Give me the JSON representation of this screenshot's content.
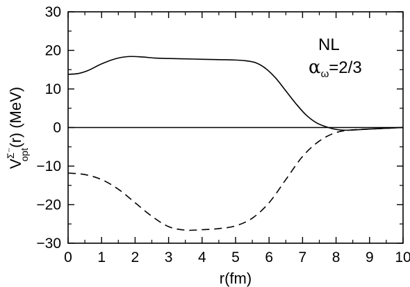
{
  "chart_data": {
    "type": "line",
    "xlabel": "r(fm)",
    "ylabel_main": "V",
    "ylabel_sup": "Σ⁻",
    "ylabel_sub": "opt",
    "ylabel_tail": "(r)  (MeV)",
    "xlim": [
      0,
      10
    ],
    "ylim": [
      -30,
      30
    ],
    "x_ticks": [
      "0",
      "1",
      "2",
      "3",
      "4",
      "5",
      "6",
      "7",
      "8",
      "9",
      "10"
    ],
    "y_ticks": [
      "30",
      "20",
      "10",
      "0",
      "−10",
      "−20",
      "−30"
    ],
    "annotation": {
      "line1": "NL",
      "alpha_symbol": "α",
      "alpha_sub": "ω",
      "alpha_value": "=2/3"
    },
    "reference_line": {
      "y": 0
    },
    "series": [
      {
        "style": "solid",
        "x": [
          0,
          0.3,
          0.6,
          1.0,
          1.4,
          1.8,
          2.2,
          2.6,
          3.0,
          3.5,
          4.0,
          4.5,
          5.0,
          5.3,
          5.6,
          5.9,
          6.2,
          6.5,
          6.8,
          7.1,
          7.4,
          7.7,
          8.0,
          8.3,
          8.6,
          9.0,
          9.5,
          10.0
        ],
        "y": [
          13.8,
          14.0,
          14.8,
          16.5,
          17.8,
          18.4,
          18.3,
          18.0,
          17.9,
          17.8,
          17.7,
          17.6,
          17.5,
          17.3,
          16.8,
          15.3,
          12.8,
          9.5,
          6.2,
          3.3,
          1.3,
          0.2,
          -0.5,
          -0.7,
          -0.6,
          -0.4,
          -0.2,
          0.0
        ]
      },
      {
        "style": "dashed",
        "x": [
          0,
          0.5,
          1.0,
          1.5,
          2.0,
          2.5,
          3.0,
          3.5,
          4.0,
          4.5,
          5.0,
          5.5,
          6.0,
          6.5,
          7.0,
          7.5,
          8.0,
          8.5,
          9.0,
          9.5,
          10.0
        ],
        "y": [
          -11.8,
          -12.2,
          -13.5,
          -16.0,
          -19.5,
          -23.0,
          -25.7,
          -26.6,
          -26.5,
          -26.2,
          -25.5,
          -23.5,
          -19.5,
          -13.5,
          -7.5,
          -3.5,
          -1.3,
          -0.6,
          -0.4,
          -0.2,
          0.0
        ]
      }
    ]
  }
}
